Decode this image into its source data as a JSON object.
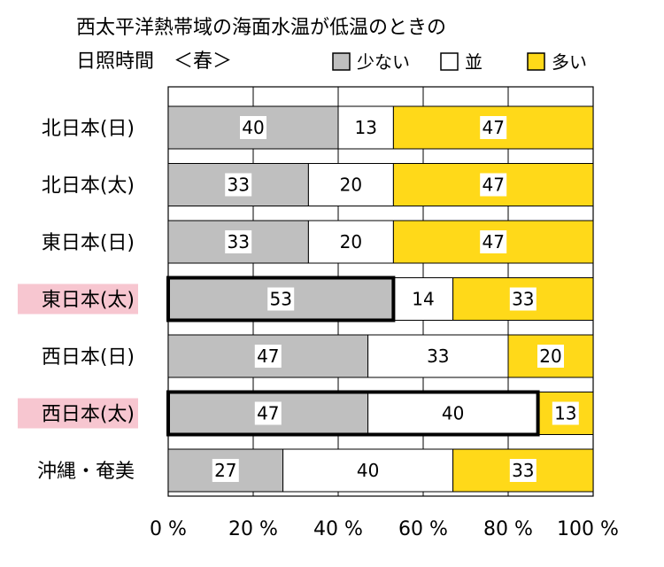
{
  "chart_data": {
    "type": "bar",
    "orientation": "horizontal",
    "stacked": true,
    "title": [
      "西太平洋熱帯域の海面水温が低温のときの",
      "日照時間　＜春＞"
    ],
    "categories": [
      "北日本(日)",
      "北日本(太)",
      "東日本(日)",
      "東日本(太)",
      "西日本(日)",
      "西日本(太)",
      "沖縄・奄美"
    ],
    "highlighted_categories": [
      "東日本(太)",
      "西日本(太)"
    ],
    "series": [
      {
        "name": "少ない",
        "color": "#bfbfbf",
        "values": [
          40,
          33,
          33,
          53,
          47,
          47,
          27
        ]
      },
      {
        "name": "並",
        "color": "#ffffff",
        "values": [
          13,
          20,
          20,
          14,
          33,
          40,
          40
        ]
      },
      {
        "name": "多い",
        "color": "#ffd919",
        "values": [
          47,
          47,
          47,
          33,
          20,
          13,
          33
        ]
      }
    ],
    "emphasized": [
      {
        "category": "東日本(太)",
        "series": "少ない"
      },
      {
        "category": "西日本(太)",
        "series": [
          "少ない",
          "並"
        ]
      }
    ],
    "xticks": [
      "0 %",
      "20 %",
      "40 %",
      "60 %",
      "80 %",
      "100 %"
    ],
    "xlim": [
      0,
      100
    ],
    "grid": true,
    "legend_position": "top-right",
    "highlight_label_color": "#f7c6d0"
  }
}
